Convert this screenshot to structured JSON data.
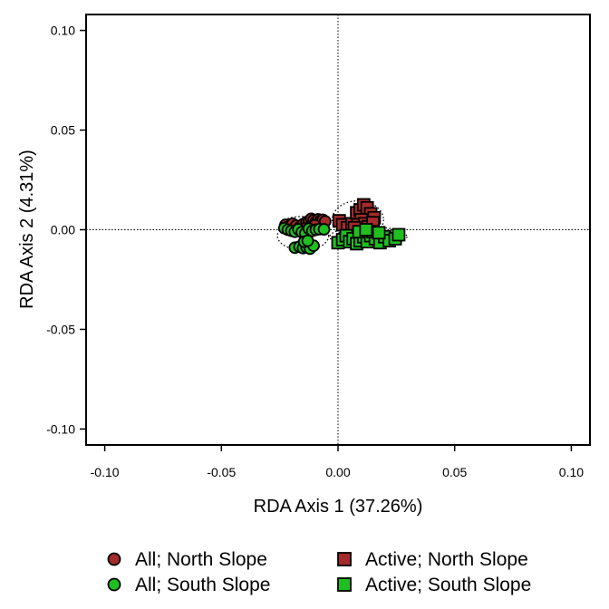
{
  "chart_data": {
    "type": "scatter",
    "title": "",
    "xlabel": "RDA Axis 1 (37.26%)",
    "ylabel": "RDA Axis 2 (4.31%)",
    "xlim": [
      -0.108,
      0.108
    ],
    "ylim": [
      -0.108,
      0.108
    ],
    "x_ticks": [
      "-0.10",
      "-0.05",
      "0.00",
      "0.05",
      "0.10"
    ],
    "y_ticks": [
      "0.10",
      "0.05",
      "0.00",
      "-0.05",
      "-0.10"
    ],
    "x_tick_values": [
      -0.1,
      -0.05,
      0.0,
      0.05,
      0.1
    ],
    "y_tick_values": [
      0.1,
      0.05,
      0.0,
      -0.05,
      -0.1
    ],
    "reference_lines": {
      "x": 0,
      "y": 0,
      "style": "dotted"
    },
    "grid": false,
    "legend_position": "bottom",
    "series": [
      {
        "name": "All; North Slope",
        "marker": "circle",
        "color": "#A52A2A",
        "points": [
          [
            -0.0225,
            0.0025
          ],
          [
            -0.021,
            0.0018
          ],
          [
            -0.0195,
            0.003
          ],
          [
            -0.018,
            0.002
          ],
          [
            -0.0165,
            0.0012
          ],
          [
            -0.015,
            0.0028
          ],
          [
            -0.0135,
            0.0038
          ],
          [
            -0.0125,
            0.0045
          ],
          [
            -0.0115,
            0.0055
          ],
          [
            -0.0105,
            0.0048
          ],
          [
            -0.0095,
            0.004
          ],
          [
            -0.0085,
            0.0052
          ],
          [
            -0.0075,
            0.0045
          ],
          [
            -0.0065,
            0.005
          ],
          [
            -0.0055,
            0.0042
          ],
          [
            -0.012,
            0.0015
          ],
          [
            -0.01,
            0.0022
          ],
          [
            -0.014,
            0.0008
          ]
        ]
      },
      {
        "name": "All; South Slope",
        "marker": "circle",
        "color": "#1FBF1F",
        "points": [
          [
            -0.023,
            0.0008
          ],
          [
            -0.0215,
            0.0
          ],
          [
            -0.02,
            -0.0005
          ],
          [
            -0.0185,
            -0.001
          ],
          [
            -0.017,
            0.0002
          ],
          [
            -0.0155,
            -0.0012
          ],
          [
            -0.014,
            -0.0018
          ],
          [
            -0.0125,
            0.0005
          ],
          [
            -0.011,
            -0.0005
          ],
          [
            -0.0095,
            0.0
          ],
          [
            -0.008,
            0.0003
          ],
          [
            -0.006,
            0.0002
          ],
          [
            -0.0185,
            -0.009
          ],
          [
            -0.0165,
            -0.0085
          ],
          [
            -0.015,
            -0.0092
          ],
          [
            -0.0135,
            -0.0088
          ],
          [
            -0.012,
            -0.0095
          ],
          [
            -0.0105,
            -0.008
          ],
          [
            -0.0145,
            -0.006
          ],
          [
            -0.013,
            -0.0055
          ]
        ]
      },
      {
        "name": "Active; North Slope",
        "marker": "square",
        "color": "#A52A2A",
        "points": [
          [
            0.0005,
            0.0045
          ],
          [
            0.002,
            0.0025
          ],
          [
            0.004,
            0.001
          ],
          [
            0.006,
            0.003
          ],
          [
            0.008,
            0.0085
          ],
          [
            0.0095,
            0.01
          ],
          [
            0.011,
            0.0125
          ],
          [
            0.0125,
            0.011
          ],
          [
            0.014,
            0.008
          ],
          [
            0.0155,
            0.006
          ],
          [
            0.01,
            0.005
          ],
          [
            0.0085,
            0.0025
          ],
          [
            0.0115,
            0.003
          ],
          [
            0.013,
            0.0015
          ],
          [
            0.007,
            0.001
          ],
          [
            0.015,
            0.0035
          ]
        ]
      },
      {
        "name": "Active; South Slope",
        "marker": "square",
        "color": "#1FBF1F",
        "points": [
          [
            0.0,
            -0.0065
          ],
          [
            0.002,
            -0.005
          ],
          [
            0.0035,
            -0.003
          ],
          [
            0.005,
            -0.006
          ],
          [
            0.0065,
            -0.0045
          ],
          [
            0.008,
            -0.007
          ],
          [
            0.0095,
            -0.0055
          ],
          [
            0.011,
            -0.0035
          ],
          [
            0.0125,
            -0.006
          ],
          [
            0.014,
            -0.003
          ],
          [
            0.016,
            -0.0045
          ],
          [
            0.018,
            -0.0065
          ],
          [
            0.02,
            -0.0035
          ],
          [
            0.022,
            -0.0055
          ],
          [
            0.0245,
            -0.0045
          ],
          [
            0.026,
            -0.0025
          ],
          [
            0.015,
            -0.001
          ],
          [
            0.0175,
            -0.0015
          ],
          [
            0.009,
            -0.001
          ],
          [
            0.012,
            0.0
          ]
        ]
      }
    ],
    "ellipses": [
      {
        "series": "All; North Slope",
        "center": [
          -0.0145,
          0.0025
        ],
        "rx": 0.0105,
        "ry": 0.0042
      },
      {
        "series": "All; South Slope",
        "center": [
          -0.015,
          -0.003
        ],
        "rx": 0.011,
        "ry": 0.0072
      },
      {
        "series": "Active; North Slope",
        "center": [
          0.0085,
          0.005
        ],
        "rx": 0.011,
        "ry": 0.0095
      },
      {
        "series": "Active; South Slope",
        "center": [
          0.013,
          -0.0035
        ],
        "rx": 0.0165,
        "ry": 0.005
      }
    ]
  },
  "legend": {
    "items": [
      {
        "label": "All; North Slope",
        "marker": "circle",
        "color": "#A52A2A"
      },
      {
        "label": "Active; North Slope",
        "marker": "square",
        "color": "#A52A2A"
      },
      {
        "label": "All; South Slope",
        "marker": "circle",
        "color": "#1FBF1F"
      },
      {
        "label": "Active; South Slope",
        "marker": "square",
        "color": "#1FBF1F"
      }
    ]
  }
}
